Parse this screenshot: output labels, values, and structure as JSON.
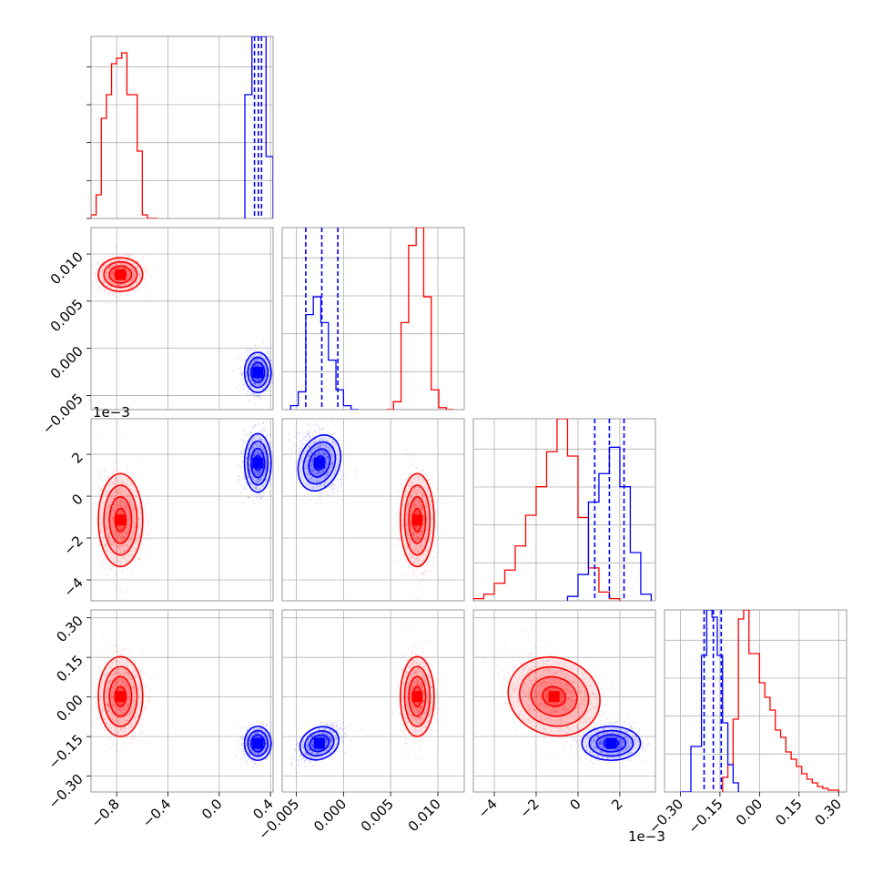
{
  "chart_data": {
    "type": "corner",
    "series": [
      {
        "name": "",
        "color": "#ff0000"
      },
      {
        "name": "",
        "color": "#0000ff"
      }
    ],
    "parameters": [
      {
        "range": [
          -1.0,
          0.42
        ],
        "ticks": [
          -0.8,
          -0.4,
          0.0,
          0.4
        ],
        "tick_labels": [
          "−0.8",
          "−0.4",
          "0.0",
          "0.4"
        ],
        "offset_label": "",
        "hist": {
          "red": {
            "bins": [
              -1.0,
              -0.96,
              -0.92,
              -0.88,
              -0.84,
              -0.8,
              -0.76,
              -0.72,
              -0.68,
              -0.64,
              -0.6,
              -0.56,
              -0.52,
              -0.48
            ],
            "counts": [
              2,
              13,
              55,
              68,
              85,
              88,
              91,
              68,
              68,
              37,
              2,
              0,
              0
            ]
          },
          "blue": {
            "bins": [
              0.2,
              0.255,
              0.31,
              0.365,
              0.42
            ],
            "counts": [
              68,
              100,
              100,
              34
            ]
          }
        },
        "quantiles_blue": [
          0.275,
          0.305,
          0.33
        ],
        "mean": {
          "red": -0.7,
          "blue": 0.31
        }
      },
      {
        "range": [
          -0.0065,
          0.0128
        ],
        "ticks": [
          -0.005,
          0.0,
          0.005,
          0.01
        ],
        "tick_labels": [
          "−0.005",
          "0.000",
          "0.005",
          "0.010"
        ],
        "offset_label": "",
        "hist": {
          "red": {
            "bins": [
              0.0045,
              0.0053,
              0.0061,
              0.0069,
              0.0077,
              0.0085,
              0.0093,
              0.0101,
              0.0109,
              0.0117
            ],
            "counts": [
              0,
              4,
              44,
              83,
              92,
              57,
              10,
              1,
              0
            ]
          },
          "blue": {
            "bins": [
              -0.0056,
              -0.0048,
              -0.004,
              -0.0032,
              -0.0024,
              -0.0016,
              -0.0008,
              0.0,
              0.0008,
              0.0016
            ],
            "counts": [
              2,
              9,
              48,
              57,
              44,
              25,
              10,
              2,
              0
            ]
          }
        },
        "quantiles_blue": [
          -0.004,
          -0.0023,
          -0.0006
        ],
        "mean": {
          "red": 0.0081,
          "blue": -0.0022
        }
      },
      {
        "range": [
          -0.005,
          0.0037
        ],
        "ticks": [
          -0.004,
          -0.002,
          0.0,
          0.002
        ],
        "tick_labels": [
          "−4",
          "−2",
          "0",
          "2"
        ],
        "offset_label": "1e−3",
        "hist": {
          "red": {
            "bins": [
              -0.005,
              -0.0045,
              -0.004,
              -0.0035,
              -0.003,
              -0.0025,
              -0.002,
              -0.0015,
              -0.001,
              -0.0005,
              0.0,
              0.0005,
              0.001,
              0.0015,
              0.002
            ],
            "counts": [
              1,
              3,
              8,
              14,
              25,
              39,
              52,
              68,
              83,
              66,
              38,
              15,
              4,
              1
            ]
          },
          "blue": {
            "bins": [
              -0.0005,
              0.0,
              0.0005,
              0.001,
              0.0015,
              0.002,
              0.0025,
              0.003,
              0.0035
            ],
            "counts": [
              2,
              12,
              45,
              58,
              70,
              52,
              22,
              3
            ]
          }
        },
        "quantiles_blue": [
          0.0008,
          0.0015,
          0.0022
        ],
        "mean": {
          "red": -0.0009,
          "blue": 0.0014
        }
      },
      {
        "range": [
          -0.36,
          0.33
        ],
        "ticks": [
          -0.3,
          -0.15,
          0.0,
          0.15,
          0.3
        ],
        "tick_labels": [
          "−0.30",
          "−0.15",
          "0.00",
          "0.15",
          "0.30"
        ],
        "offset_label": "",
        "hist": {
          "red": {
            "bins": [
              -0.14,
              -0.12,
              -0.1,
              -0.08,
              -0.06,
              -0.04,
              -0.02,
              0.0,
              0.02,
              0.04,
              0.06,
              0.08,
              0.1,
              0.12,
              0.14,
              0.16,
              0.18,
              0.2,
              0.22,
              0.24,
              0.26,
              0.28,
              0.3
            ],
            "counts": [
              8,
              15,
              40,
              95,
              100,
              76,
              76,
              60,
              52,
              45,
              34,
              30,
              22,
              18,
              14,
              10,
              7,
              5,
              3,
              2,
              1,
              1
            ]
          },
          "blue": {
            "bins": [
              -0.3,
              -0.26,
              -0.22,
              -0.2,
              -0.18,
              -0.16,
              -0.14,
              -0.12,
              -0.1,
              -0.08
            ],
            "counts": [
              0,
              25,
              75,
              100,
              96,
              75,
              38,
              15,
              5
            ]
          }
        },
        "quantiles_blue": [
          -0.21,
          -0.175,
          -0.145
        ],
        "mean": {
          "red": -0.06,
          "blue": -0.17
        }
      }
    ]
  }
}
